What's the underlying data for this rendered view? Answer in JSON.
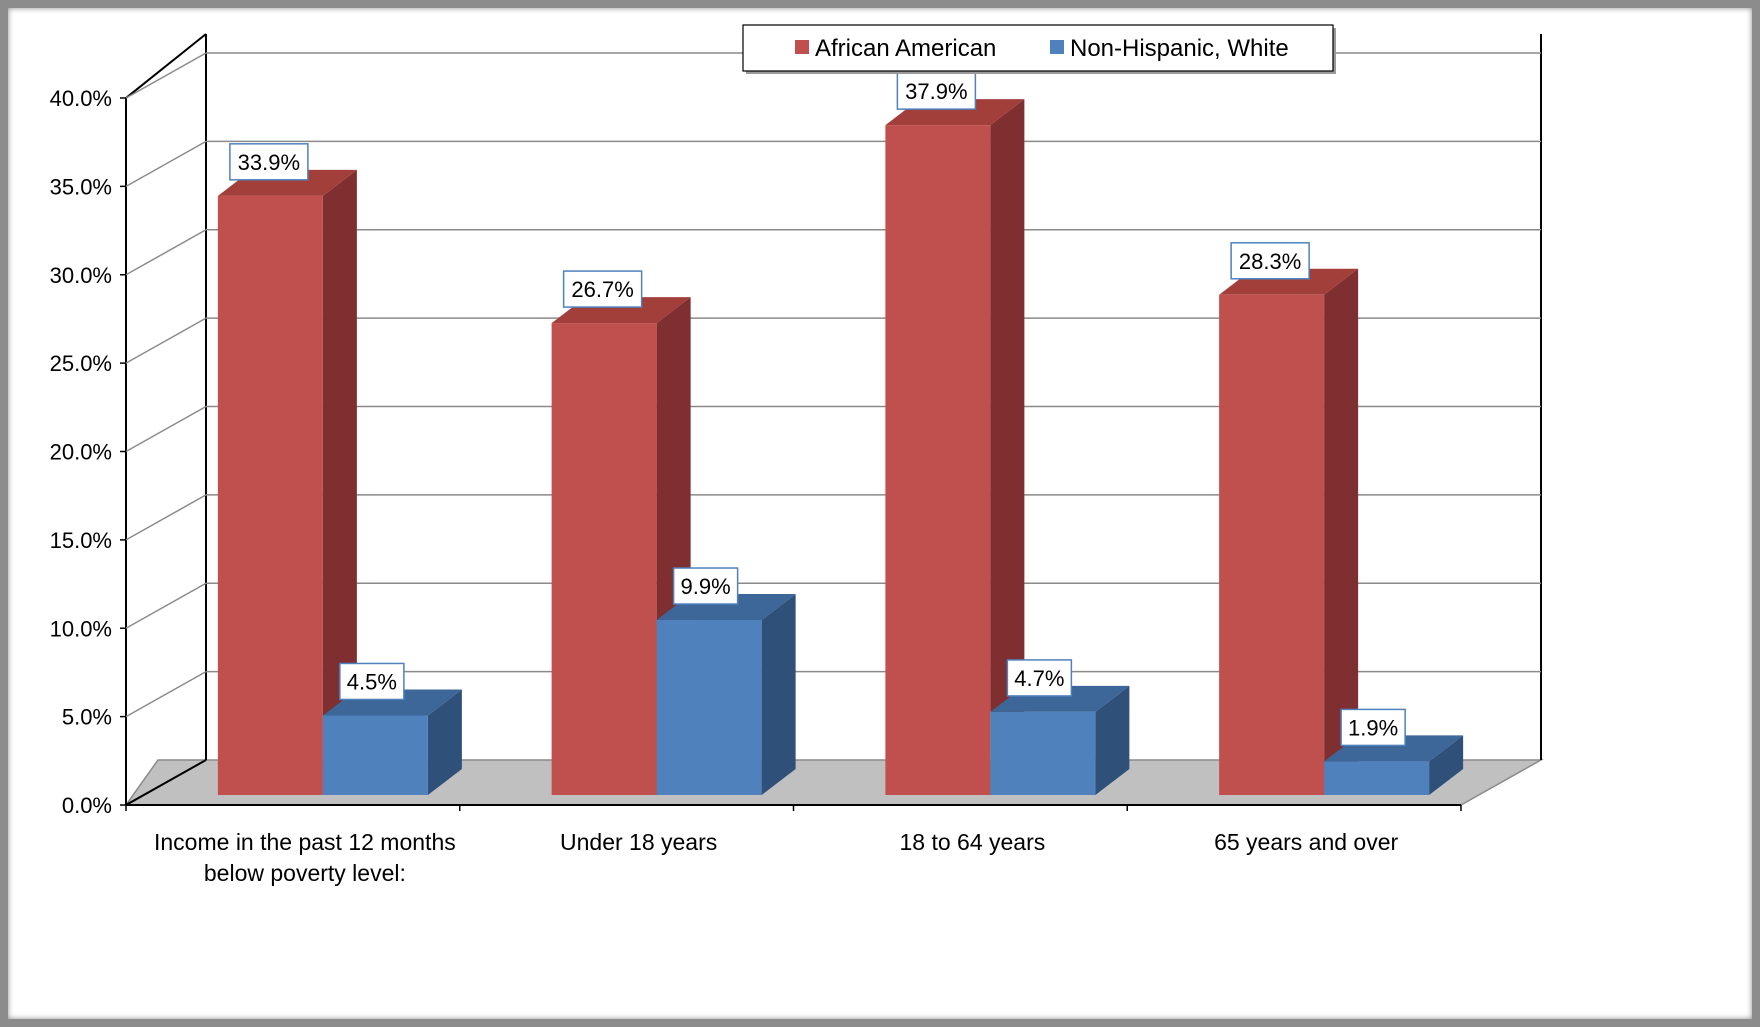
{
  "chart_data": {
    "type": "bar",
    "categories": [
      [
        "Income in the past 12 months",
        "below poverty level:"
      ],
      [
        "Under 18 years"
      ],
      [
        "18 to 64 years"
      ],
      [
        "65 years and over"
      ]
    ],
    "series": [
      {
        "name": "African American",
        "values": [
          33.9,
          26.7,
          37.9,
          28.3
        ],
        "labels": [
          "33.9%",
          "26.7%",
          "37.9%",
          "28.3%"
        ],
        "color": "#c0504d",
        "side_color": "#7f2f2f",
        "top_color": "#a33f3b"
      },
      {
        "name": "Non-Hispanic, White",
        "values": [
          4.5,
          9.9,
          4.7,
          1.9
        ],
        "labels": [
          "4.5%",
          "9.9%",
          "4.7%",
          "1.9%"
        ],
        "color": "#4f81bd",
        "side_color": "#2f5079",
        "top_color": "#3d6699"
      }
    ],
    "yticks": [
      "0.0%",
      "5.0%",
      "10.0%",
      "15.0%",
      "20.0%",
      "25.0%",
      "30.0%",
      "35.0%",
      "40.0%"
    ],
    "ylim": [
      0,
      40
    ],
    "three_d": true,
    "grid": true,
    "legend_position": "top",
    "floor_color": "#c0c0c0",
    "data_label_border": "#4f81bd"
  }
}
